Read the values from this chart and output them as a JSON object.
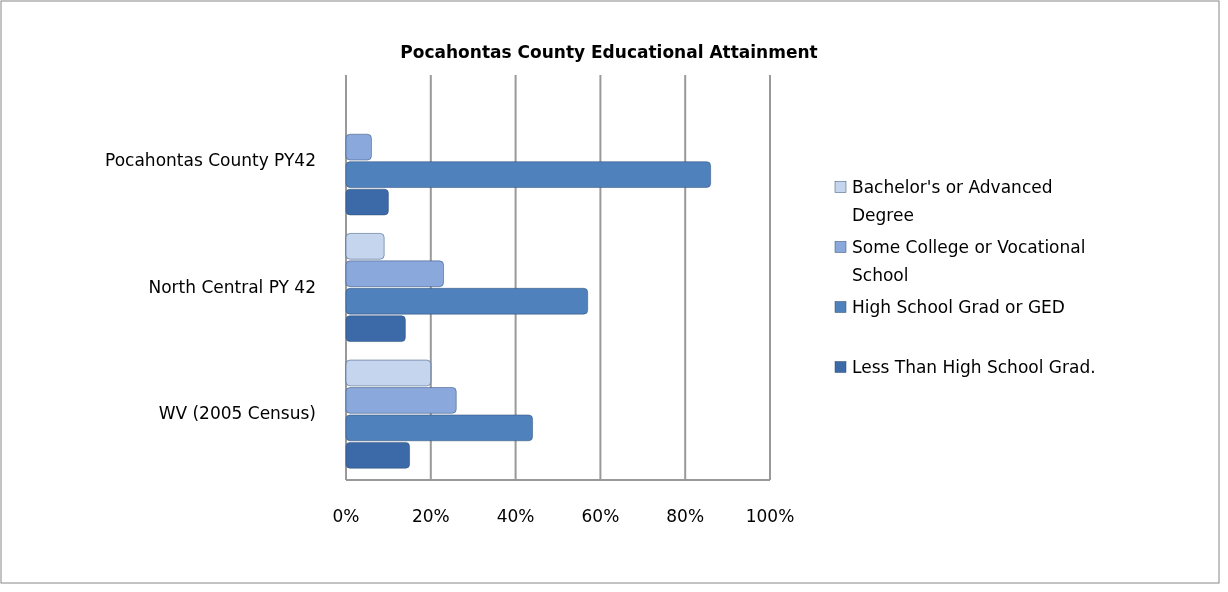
{
  "chart_data": {
    "type": "bar",
    "orientation": "horizontal",
    "title": "Pocahontas County Educational Attainment",
    "categories": [
      "Pocahontas County PY42",
      "North Central PY 42",
      "WV (2005 Census)"
    ],
    "series": [
      {
        "name": "Bachelor's or Advanced Degree",
        "color": "#c5d5ee",
        "values": [
          0,
          9,
          20
        ]
      },
      {
        "name": "Some College or Vocational School",
        "color": "#8aa8dc",
        "values": [
          6,
          23,
          26
        ]
      },
      {
        "name": "High School Grad or GED",
        "color": "#4f81bd",
        "values": [
          86,
          57,
          44
        ]
      },
      {
        "name": "Less Than High School Grad.",
        "color": "#3c6aa8",
        "values": [
          10,
          14,
          15
        ]
      }
    ],
    "xlim": [
      0,
      100
    ],
    "xticks": [
      {
        "value": 0,
        "label": "0%"
      },
      {
        "value": 20,
        "label": "20%"
      },
      {
        "value": 40,
        "label": "40%"
      },
      {
        "value": 60,
        "label": "60%"
      },
      {
        "value": 80,
        "label": "80%"
      },
      {
        "value": 100,
        "label": "100%"
      }
    ],
    "grid": "x",
    "legend": "right"
  }
}
